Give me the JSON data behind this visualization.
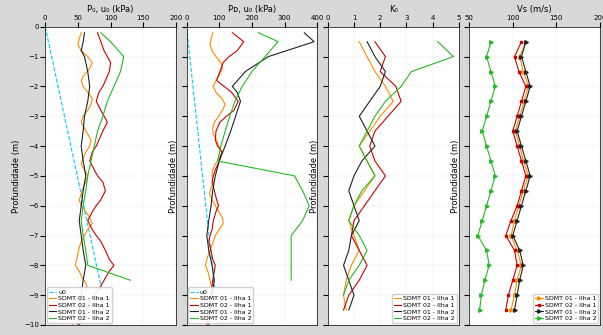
{
  "panel1_title": "P₀, u₀ (kPa)",
  "panel2_title": "Pᴅ, u₀ (kPa)",
  "panel3_title": "K₀",
  "panel4_title": "Vs (m/s)",
  "ylabel": "Profundidade (m)",
  "ylim": [
    -10,
    0
  ],
  "panel1_xlim": [
    0,
    200
  ],
  "panel2_xlim": [
    0,
    400
  ],
  "panel3_xlim": [
    0,
    5
  ],
  "panel4_xlim": [
    50,
    200
  ],
  "panel1_xticks": [
    0,
    50,
    100,
    150,
    200
  ],
  "panel2_xticks": [
    0,
    100,
    200,
    300,
    400
  ],
  "panel3_xticks": [
    0,
    1,
    2,
    3,
    4,
    5
  ],
  "panel4_xticks": [
    50,
    100,
    150,
    200
  ],
  "color_u0": "#00CFFF",
  "color_sdmt01_ilha1": "#FF8C00",
  "color_sdmt02_ilha1": "#CC0000",
  "color_sdmt01_ilha2": "#222222",
  "color_sdmt02_ilha2": "#22BB22",
  "bg_color": "#ffffff",
  "linewidth": 0.8,
  "u0_p1_depth": [
    0,
    -10
  ],
  "u0_p1_val": [
    0,
    98
  ],
  "p1_s01_i1_depth": [
    -0.2,
    -0.4,
    -0.6,
    -0.8,
    -1.0,
    -1.2,
    -1.4,
    -1.6,
    -1.8,
    -2.0,
    -2.2,
    -2.4,
    -2.6,
    -2.8,
    -3.0,
    -3.2,
    -3.4,
    -3.6,
    -3.8,
    -4.0,
    -4.2,
    -4.4,
    -4.6,
    -4.8,
    -5.0,
    -5.2,
    -5.4,
    -5.6,
    -5.8,
    -6.0,
    -6.2,
    -6.4,
    -6.6,
    -6.8,
    -7.0,
    -7.2,
    -7.4,
    -7.6,
    -7.8,
    -8.0,
    -8.2,
    -8.4,
    -8.6,
    -8.8,
    -9.0,
    -9.2,
    -9.4,
    -9.6,
    -9.8,
    -10.0
  ],
  "p1_s01_i1_val": [
    55,
    52,
    50,
    55,
    65,
    72,
    68,
    60,
    55,
    58,
    65,
    72,
    70,
    65,
    58,
    55,
    60,
    65,
    70,
    68,
    62,
    58,
    55,
    60,
    65,
    62,
    58,
    55,
    52,
    55,
    62,
    68,
    72,
    65,
    60,
    55,
    52,
    50,
    48,
    46,
    52,
    56,
    62,
    65,
    58,
    52,
    47,
    43,
    40,
    42
  ],
  "p1_s02_i1_depth": [
    -0.2,
    -0.5,
    -0.8,
    -1.0,
    -1.2,
    -1.5,
    -1.8,
    -2.0,
    -2.2,
    -2.5,
    -2.8,
    -3.0,
    -3.2,
    -3.5,
    -3.8,
    -4.0,
    -4.2,
    -4.5,
    -4.8,
    -5.0,
    -5.2,
    -5.5,
    -5.8,
    -6.0,
    -6.2,
    -6.5,
    -6.8,
    -7.0,
    -7.2,
    -7.5,
    -7.8,
    -8.0,
    -8.2,
    -8.5,
    -8.8,
    -9.0,
    -9.2,
    -9.5,
    -9.8,
    -10.0
  ],
  "p1_s02_i1_val": [
    80,
    85,
    90,
    95,
    100,
    98,
    92,
    88,
    82,
    78,
    85,
    90,
    95,
    88,
    82,
    78,
    72,
    68,
    75,
    80,
    88,
    92,
    85,
    78,
    72,
    65,
    72,
    78,
    85,
    92,
    98,
    105,
    98,
    90,
    82,
    75,
    68,
    62,
    57,
    52
  ],
  "p1_s01_i2_depth": [
    -0.2,
    -0.5,
    -0.8,
    -1.0,
    -1.5,
    -2.0,
    -2.5,
    -3.0,
    -3.5,
    -4.0,
    -4.5,
    -5.0,
    -5.5,
    -6.0,
    -6.5,
    -7.0,
    -7.5,
    -8.0,
    -8.5,
    -9.0,
    -9.5,
    -10.0
  ],
  "p1_s01_i2_val": [
    60,
    58,
    55,
    60,
    65,
    68,
    65,
    60,
    58,
    55,
    58,
    62,
    58,
    55,
    52,
    55,
    58,
    62,
    58,
    55,
    52,
    50
  ],
  "p1_s02_i2_depth": [
    -0.2,
    -0.5,
    -1.0,
    -1.5,
    -2.0,
    -2.5,
    -3.0,
    -3.5,
    -4.0,
    -4.5,
    -5.0,
    -5.5,
    -6.0,
    -6.5,
    -7.0,
    -7.5,
    -8.0,
    -8.5
  ],
  "p1_s02_i2_val": [
    85,
    100,
    120,
    115,
    105,
    95,
    88,
    80,
    75,
    70,
    65,
    62,
    58,
    55,
    58,
    62,
    65,
    130
  ],
  "u0_p2_depth": [
    0,
    -10
  ],
  "u0_p2_val": [
    0,
    98
  ],
  "p2_s01_i1_depth": [
    -0.2,
    -0.4,
    -0.6,
    -0.8,
    -1.0,
    -1.2,
    -1.4,
    -1.6,
    -1.8,
    -2.0,
    -2.2,
    -2.4,
    -2.6,
    -2.8,
    -3.0,
    -3.2,
    -3.4,
    -3.6,
    -3.8,
    -4.0,
    -4.2,
    -4.4,
    -4.6,
    -4.8,
    -5.0,
    -5.2,
    -5.4,
    -5.6,
    -5.8,
    -6.0,
    -6.2,
    -6.4,
    -6.6,
    -6.8,
    -7.0,
    -7.2,
    -7.4,
    -7.6,
    -7.8,
    -8.0,
    -8.2,
    -8.5,
    -8.8,
    -9.0,
    -9.5,
    -10.0
  ],
  "p2_s01_i1_val": [
    80,
    75,
    72,
    78,
    90,
    105,
    110,
    100,
    90,
    82,
    90,
    108,
    118,
    110,
    98,
    85,
    80,
    82,
    92,
    98,
    110,
    100,
    88,
    80,
    78,
    82,
    75,
    70,
    78,
    88,
    98,
    110,
    112,
    100,
    88,
    82,
    75,
    68,
    62,
    58,
    65,
    72,
    78,
    72,
    68,
    62
  ],
  "p2_s02_i1_depth": [
    -0.2,
    -0.5,
    -0.8,
    -1.0,
    -1.2,
    -1.5,
    -1.8,
    -2.0,
    -2.2,
    -2.5,
    -2.8,
    -3.0,
    -3.2,
    -3.5,
    -3.8,
    -4.0,
    -4.2,
    -4.5,
    -4.8,
    -5.0,
    -5.2,
    -5.5,
    -5.8,
    -6.0,
    -6.2,
    -6.5,
    -6.8,
    -7.0,
    -7.2,
    -7.5,
    -7.8,
    -8.0,
    -8.5,
    -9.0,
    -9.5,
    -10.0
  ],
  "p2_s02_i1_val": [
    140,
    175,
    155,
    130,
    112,
    102,
    92,
    115,
    138,
    158,
    145,
    122,
    102,
    90,
    88,
    95,
    108,
    100,
    88,
    82,
    78,
    85,
    92,
    98,
    90,
    82,
    78,
    72,
    68,
    75,
    80,
    88,
    80,
    75,
    68,
    62
  ],
  "p2_s01_i2_depth": [
    -0.2,
    -0.5,
    -1.0,
    -1.5,
    -2.0,
    -2.2,
    -2.5,
    -3.0,
    -3.5,
    -4.0,
    -4.5,
    -5.0,
    -5.5,
    -6.0,
    -6.5,
    -7.0,
    -7.5,
    -8.0,
    -8.5,
    -9.0,
    -9.5,
    -10.0
  ],
  "p2_s01_i2_val": [
    360,
    390,
    250,
    180,
    140,
    155,
    165,
    150,
    135,
    118,
    100,
    88,
    80,
    75,
    68,
    62,
    68,
    78,
    85,
    78,
    72,
    68
  ],
  "p2_s02_i2_depth": [
    -0.2,
    -0.5,
    -1.0,
    -1.5,
    -2.0,
    -2.5,
    -3.0,
    -3.5,
    -4.0,
    -4.5,
    -5.0,
    -5.5,
    -6.0,
    -6.5,
    -7.0,
    -7.5,
    -8.0,
    -8.5
  ],
  "p2_s02_i2_val": [
    220,
    280,
    240,
    200,
    170,
    148,
    132,
    118,
    105,
    95,
    330,
    355,
    375,
    355,
    320,
    320,
    320,
    320
  ],
  "p3_s01_i1_depth": [
    -0.5,
    -1.0,
    -1.5,
    -2.0,
    -2.5,
    -3.0,
    -3.5,
    -4.0,
    -4.5,
    -5.0,
    -5.5,
    -6.0,
    -6.5,
    -7.0,
    -7.5,
    -8.0,
    -8.5,
    -9.0,
    -9.5
  ],
  "p3_s01_i1_val": [
    1.2,
    1.5,
    1.8,
    2.2,
    2.5,
    2.0,
    1.6,
    1.2,
    1.5,
    1.8,
    1.4,
    1.0,
    0.8,
    1.0,
    1.2,
    0.9,
    0.7,
    0.6,
    0.7
  ],
  "p3_s02_i1_depth": [
    -0.5,
    -1.0,
    -1.5,
    -2.0,
    -2.5,
    -3.0,
    -3.5,
    -4.0,
    -4.5,
    -5.0,
    -5.5,
    -6.0,
    -6.5,
    -7.0,
    -7.5,
    -8.0,
    -8.5,
    -9.0,
    -9.5
  ],
  "p3_s02_i1_val": [
    1.8,
    2.2,
    2.0,
    2.6,
    2.8,
    2.3,
    1.8,
    1.6,
    1.8,
    2.2,
    1.8,
    1.4,
    1.0,
    0.9,
    1.2,
    1.5,
    1.2,
    0.8,
    0.6
  ],
  "p3_s01_i2_depth": [
    -0.5,
    -1.0,
    -1.5,
    -2.0,
    -2.5,
    -3.0,
    -3.5,
    -4.0,
    -4.5,
    -5.0,
    -5.5,
    -6.0,
    -6.5,
    -7.0,
    -7.5,
    -8.0,
    -8.5,
    -9.0,
    -9.5
  ],
  "p3_s01_i2_val": [
    1.5,
    1.8,
    2.2,
    2.0,
    1.6,
    1.2,
    1.5,
    1.8,
    1.3,
    1.0,
    0.8,
    1.0,
    1.2,
    0.9,
    0.8,
    0.6,
    0.8,
    1.0,
    0.8
  ],
  "p3_s02_i2_depth": [
    -0.5,
    -1.0,
    -1.5,
    -2.0,
    -2.5,
    -3.0,
    -3.5,
    -4.0,
    -4.5,
    -5.0,
    -5.5,
    -6.0,
    -6.5,
    -7.0,
    -7.5,
    -8.0,
    -8.5,
    -9.0
  ],
  "p3_s02_i2_val": [
    4.2,
    4.8,
    3.2,
    2.8,
    2.2,
    1.8,
    1.5,
    1.2,
    1.5,
    1.8,
    1.3,
    1.0,
    0.8,
    1.2,
    1.5,
    1.2,
    0.8,
    0.6
  ],
  "p4_s01_i1_depth": [
    -0.5,
    -1.0,
    -1.5,
    -2.0,
    -2.5,
    -3.0,
    -3.5,
    -4.0,
    -4.5,
    -5.0,
    -5.5,
    -6.0,
    -6.5,
    -7.0,
    -7.5,
    -8.0,
    -8.5,
    -9.0,
    -9.5
  ],
  "p4_s01_i1_val": [
    115,
    108,
    112,
    118,
    113,
    108,
    103,
    108,
    112,
    118,
    112,
    107,
    102,
    98,
    105,
    110,
    105,
    102,
    98
  ],
  "p4_s02_i1_depth": [
    -0.5,
    -1.0,
    -1.5,
    -2.0,
    -2.5,
    -3.0,
    -3.5,
    -4.0,
    -4.5,
    -5.0,
    -5.5,
    -6.0,
    -6.5,
    -7.0,
    -7.5,
    -8.0,
    -8.5,
    -9.0,
    -9.5
  ],
  "p4_s02_i1_val": [
    110,
    102,
    107,
    115,
    110,
    105,
    100,
    105,
    110,
    115,
    110,
    105,
    98,
    92,
    102,
    105,
    100,
    95,
    92
  ],
  "p4_s01_i2_depth": [
    -0.5,
    -1.0,
    -1.5,
    -2.0,
    -2.5,
    -3.0,
    -3.5,
    -4.0,
    -4.5,
    -5.0,
    -5.5,
    -6.0,
    -6.5,
    -7.0,
    -7.5,
    -8.0,
    -8.5,
    -9.0,
    -9.5
  ],
  "p4_s01_i2_val": [
    115,
    110,
    115,
    120,
    115,
    110,
    105,
    110,
    115,
    120,
    115,
    110,
    105,
    100,
    108,
    112,
    108,
    105,
    102
  ],
  "p4_s02_i2_depth": [
    -0.5,
    -1.0,
    -1.5,
    -2.0,
    -2.5,
    -3.0,
    -3.5,
    -4.0,
    -4.5,
    -5.0,
    -5.5,
    -6.0,
    -6.5,
    -7.0,
    -7.5,
    -8.0,
    -8.5,
    -9.0,
    -9.5
  ],
  "p4_s02_i2_val": [
    75,
    70,
    75,
    80,
    75,
    70,
    65,
    70,
    75,
    80,
    75,
    70,
    65,
    60,
    70,
    73,
    68,
    64,
    62
  ]
}
